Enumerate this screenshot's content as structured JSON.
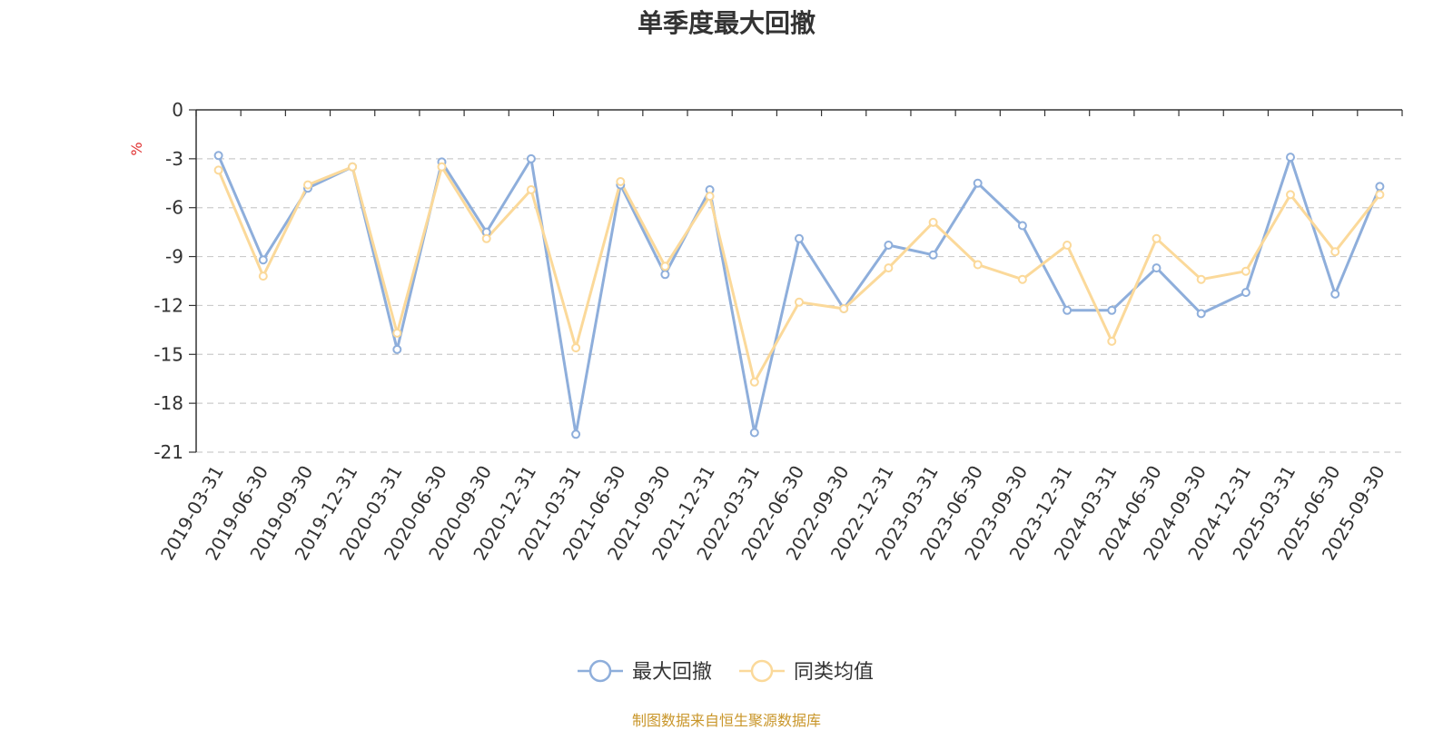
{
  "source_note": "制图数据来自恒生聚源数据库",
  "chart_data": {
    "type": "line",
    "title": "单季度最大回撤",
    "ylabel": "%",
    "xlabel": "",
    "ylim": [
      -21,
      0
    ],
    "y_ticks": [
      0,
      -3,
      -6,
      -9,
      -12,
      -15,
      -18,
      -21
    ],
    "grid": true,
    "legend_position": "bottom",
    "categories": [
      "2019-03-31",
      "2019-06-30",
      "2019-09-30",
      "2019-12-31",
      "2020-03-31",
      "2020-06-30",
      "2020-09-30",
      "2020-12-31",
      "2021-03-31",
      "2021-06-30",
      "2021-09-30",
      "2021-12-31",
      "2022-03-31",
      "2022-06-30",
      "2022-09-30",
      "2022-12-31",
      "2023-03-31",
      "2023-06-30",
      "2023-09-30",
      "2023-12-31",
      "2024-03-31",
      "2024-06-30",
      "2024-09-30",
      "2024-12-31",
      "2025-03-31",
      "2025-06-30",
      "2025-09-30"
    ],
    "series": [
      {
        "name": "最大回撤",
        "color": "#8eaedb",
        "values": [
          -2.8,
          -9.2,
          -4.8,
          -3.5,
          -14.7,
          -3.2,
          -7.5,
          -3.0,
          -19.9,
          -4.6,
          -10.1,
          -4.9,
          -19.8,
          -7.9,
          -12.2,
          -8.3,
          -8.9,
          -4.5,
          -7.1,
          -12.3,
          -12.3,
          -9.7,
          -12.5,
          -11.2,
          -2.9,
          -11.3,
          -4.7
        ]
      },
      {
        "name": "同类均值",
        "color": "#fbd99a",
        "values": [
          -3.7,
          -10.2,
          -4.6,
          -3.5,
          -13.7,
          -3.5,
          -7.9,
          -4.9,
          -14.6,
          -4.4,
          -9.6,
          -5.3,
          -16.7,
          -11.8,
          -12.2,
          -9.7,
          -6.9,
          -9.5,
          -10.4,
          -8.3,
          -14.2,
          -7.9,
          -10.4,
          -9.9,
          -5.2,
          -8.7,
          -5.2
        ]
      }
    ]
  }
}
